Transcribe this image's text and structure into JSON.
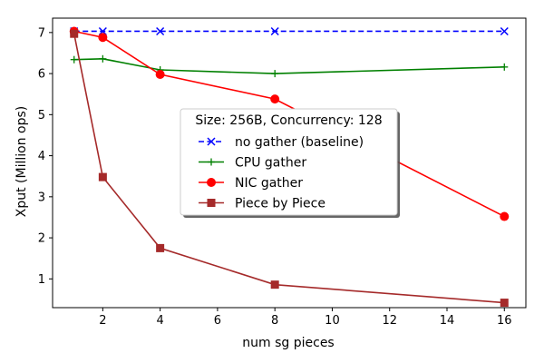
{
  "chart_data": {
    "type": "line",
    "title": "",
    "xlabel": "num sg pieces",
    "ylabel": "Xput (Million ops)",
    "xlim": [
      0.25,
      16.75
    ],
    "ylim": [
      0.3,
      7.35
    ],
    "xticks": [
      2,
      4,
      6,
      8,
      10,
      12,
      14,
      16
    ],
    "yticks": [
      1,
      2,
      3,
      4,
      5,
      6,
      7
    ],
    "grid": false,
    "legend": {
      "title": "Size: 256B, Concurrency: 128",
      "placement": "center"
    },
    "series": [
      {
        "name": "no gather (baseline)",
        "color": "#0000ff",
        "linestyle": "dashed",
        "marker": "x",
        "x": [
          1,
          2,
          4,
          8,
          16
        ],
        "y": [
          7.03,
          7.03,
          7.03,
          7.03,
          7.03
        ]
      },
      {
        "name": "CPU gather",
        "color": "#008000",
        "linestyle": "solid",
        "marker": "+",
        "x": [
          1,
          2,
          4,
          8,
          16
        ],
        "y": [
          6.34,
          6.36,
          6.09,
          6.0,
          6.16
        ]
      },
      {
        "name": "NIC gather",
        "color": "#ff0000",
        "linestyle": "solid",
        "marker": "o",
        "x": [
          1,
          2,
          4,
          8,
          16
        ],
        "y": [
          7.03,
          6.88,
          5.98,
          5.38,
          2.52
        ]
      },
      {
        "name": "Piece by Piece",
        "color": "#a52a2a",
        "linestyle": "solid",
        "marker": "s",
        "x": [
          1,
          2,
          4,
          8,
          16
        ],
        "y": [
          6.97,
          3.48,
          1.75,
          0.86,
          0.42
        ]
      }
    ]
  }
}
